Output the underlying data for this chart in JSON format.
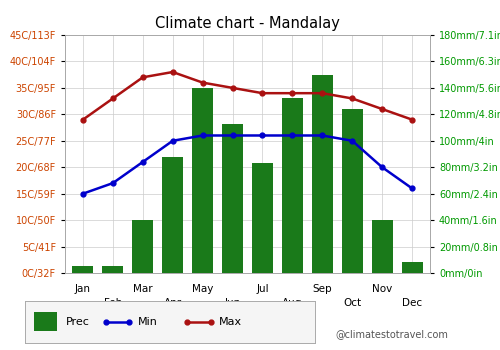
{
  "title": "Climate chart - Mandalay",
  "months": [
    "Jan",
    "Feb",
    "Mar",
    "Apr",
    "May",
    "Jun",
    "Jul",
    "Aug",
    "Sep",
    "Oct",
    "Dec"
  ],
  "months_all": [
    "Jan",
    "Feb",
    "Mar",
    "Apr",
    "May",
    "Jun",
    "Jul",
    "Aug",
    "Sep",
    "Oct",
    "Nov",
    "Dec"
  ],
  "prec": [
    5,
    5,
    40,
    88,
    140,
    113,
    83,
    132,
    150,
    124,
    40,
    8
  ],
  "temp_min": [
    15,
    17,
    21,
    25,
    26,
    26,
    26,
    26,
    26,
    25,
    20,
    16
  ],
  "temp_max": [
    29,
    33,
    37,
    38,
    36,
    35,
    34,
    34,
    34,
    33,
    31,
    29
  ],
  "temp_ylim": [
    0,
    45
  ],
  "temp_yticks": [
    0,
    5,
    10,
    15,
    20,
    25,
    30,
    35,
    40,
    45
  ],
  "temp_yticklabels": [
    "0C/32F",
    "5C/41F",
    "10C/50F",
    "15C/59F",
    "20C/68F",
    "25C/77F",
    "30C/86F",
    "35C/95F",
    "40C/104F",
    "45C/113F"
  ],
  "prec_ylim": [
    0,
    180
  ],
  "prec_yticks": [
    0,
    20,
    40,
    60,
    80,
    100,
    120,
    140,
    160,
    180
  ],
  "prec_yticklabels": [
    "0mm/0in",
    "20mm/0.8in",
    "40mm/1.6in",
    "60mm/2.4in",
    "80mm/3.2in",
    "100mm/4in",
    "120mm/4.8in",
    "140mm/5.6in",
    "160mm/6.3in",
    "180mm/7.1in"
  ],
  "bar_color": "#1a7a1a",
  "line_min_color": "#0000cc",
  "line_max_color": "#aa1111",
  "bg_color": "#ffffff",
  "grid_color": "#cccccc",
  "left_label_color": "#cc4400",
  "right_label_color": "#009900",
  "watermark": "@climatestotravel.com",
  "legend_prec": "Prec",
  "legend_min": "Min",
  "legend_max": "Max"
}
